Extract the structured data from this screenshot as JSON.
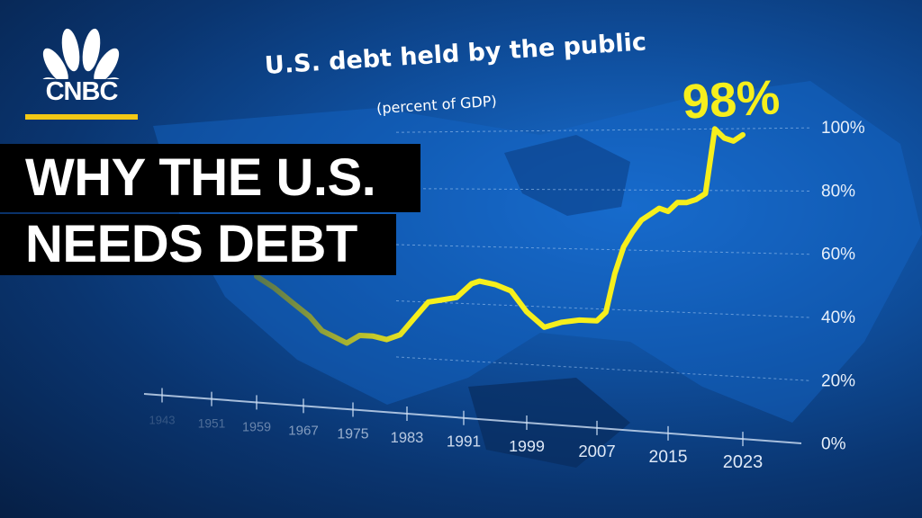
{
  "brand": {
    "logo_text": "CNBC",
    "accent_color": "#f3c915"
  },
  "headline": {
    "line1": "WHY THE U.S.",
    "line2": "NEEDS DEBT"
  },
  "chart_data": {
    "type": "line",
    "title": "U.S. debt held by the public",
    "subtitle": "(percent of GDP)",
    "callout": "98%",
    "x_tick_labels": [
      "1943",
      "1951",
      "1959",
      "1967",
      "1975",
      "1983",
      "1991",
      "1999",
      "2007",
      "2015",
      "2023"
    ],
    "y_tick_labels": [
      "0%",
      "20%",
      "40%",
      "60%",
      "80%",
      "100%"
    ],
    "xlim": [
      1943,
      2023
    ],
    "ylim": [
      0,
      100
    ],
    "grid": true,
    "line_color": "#f6ef1c",
    "x": [
      1959,
      1962,
      1965,
      1968,
      1970,
      1972,
      1974,
      1976,
      1978,
      1980,
      1982,
      1984,
      1986,
      1988,
      1990,
      1992,
      1993,
      1995,
      1997,
      1999,
      2001,
      2003,
      2005,
      2007,
      2008,
      2009,
      2010,
      2011,
      2012,
      2013,
      2014,
      2015,
      2016,
      2017,
      2018,
      2019,
      2020,
      2021,
      2022,
      2023
    ],
    "y": [
      47,
      43,
      38,
      33,
      28,
      26,
      24,
      27,
      27,
      26,
      28,
      34,
      40,
      41,
      42,
      47,
      48,
      47,
      45,
      38,
      33,
      35,
      36,
      36,
      39,
      52,
      61,
      66,
      70,
      72,
      74,
      73,
      76,
      76,
      77,
      79,
      100,
      97,
      96,
      98
    ]
  }
}
